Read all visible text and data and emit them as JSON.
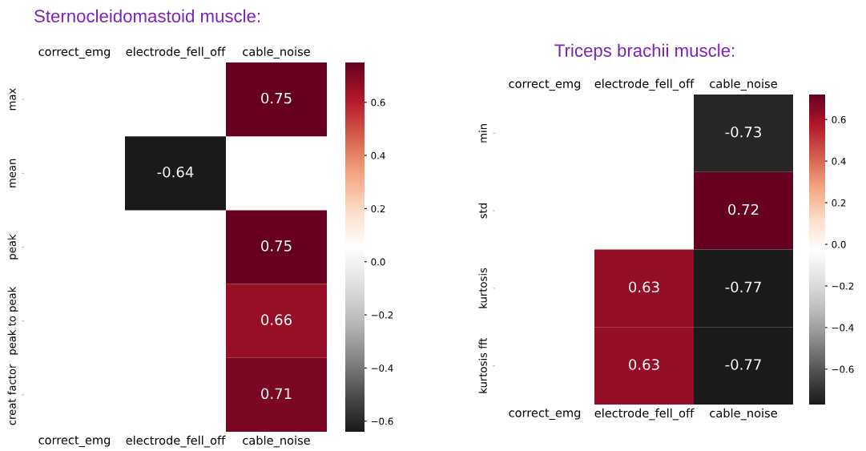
{
  "chart_data": [
    {
      "type": "heatmap",
      "title": "Sternocleidomastoid muscle:",
      "categories": [
        "correct_emg",
        "electrode_fell_off",
        "cable_noise"
      ],
      "y_categories": [
        "max",
        "mean",
        "peak",
        "peak to peak",
        "creat factor"
      ],
      "cells": [
        [
          null,
          null,
          0.75
        ],
        [
          null,
          -0.64,
          null
        ],
        [
          null,
          null,
          0.75
        ],
        [
          null,
          null,
          0.66
        ],
        [
          null,
          null,
          0.71
        ]
      ],
      "clim": [
        -0.64,
        0.75
      ],
      "cticks": [
        {
          "value": -0.6,
          "label": "−0.6"
        },
        {
          "value": -0.4,
          "label": "−0.4"
        },
        {
          "value": -0.2,
          "label": "−0.2"
        },
        {
          "value": 0,
          "label": "0.0"
        },
        0.2,
        0.4,
        0.6
      ],
      "data_labels": true
    },
    {
      "type": "heatmap",
      "title": "Triceps brachii muscle:",
      "categories": [
        "correct_emg",
        "electrode_fell_off",
        "cable_noise"
      ],
      "y_categories": [
        "min",
        "std",
        "kurtosis",
        "kurtosis fft"
      ],
      "cells": [
        [
          null,
          null,
          -0.73
        ],
        [
          null,
          null,
          0.72
        ],
        [
          null,
          0.63,
          -0.77
        ],
        [
          null,
          0.63,
          -0.77
        ]
      ],
      "clim": [
        -0.77,
        0.72
      ],
      "cticks": [
        {
          "value": -0.6,
          "label": "−0.6"
        },
        {
          "value": -0.4,
          "label": "−0.4"
        },
        {
          "value": -0.2,
          "label": "−0.2"
        },
        {
          "value": 0,
          "label": "0.0"
        },
        0.2,
        0.4,
        0.6
      ],
      "data_labels": true
    }
  ]
}
